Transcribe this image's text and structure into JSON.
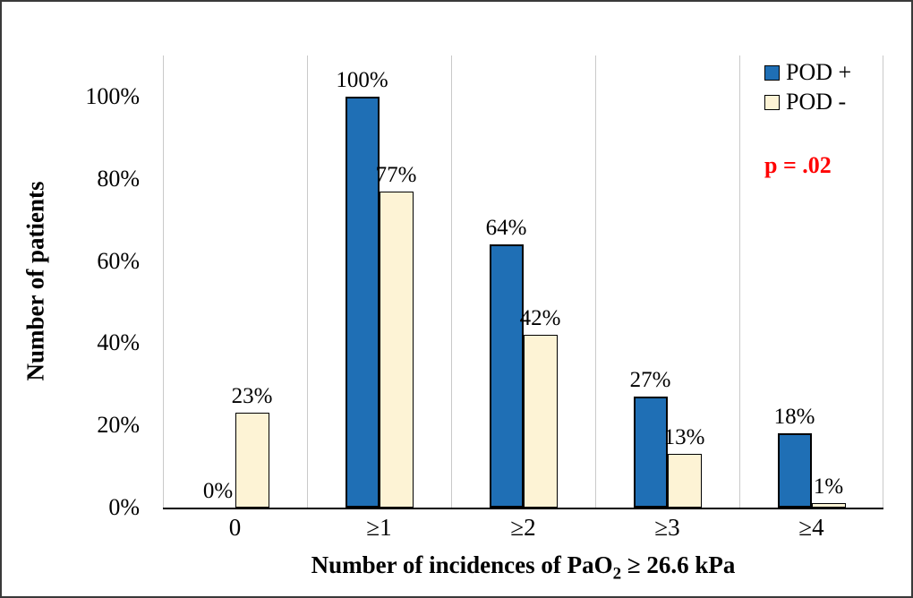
{
  "chart_data": {
    "type": "bar",
    "title": "",
    "categories": [
      "0",
      "≥1",
      "≥2",
      "≥3",
      "≥4"
    ],
    "series": [
      {
        "name": "POD +",
        "color": "#1f6fb5",
        "values": [
          0,
          100,
          64,
          27,
          18
        ]
      },
      {
        "name": "POD -",
        "color": "#fdf3d5",
        "values": [
          23,
          77,
          42,
          13,
          1
        ]
      }
    ],
    "value_label_suffix": "%",
    "ylabel": "Number of patients",
    "xlabel_parts": {
      "prefix": "Number of incidences of PaO",
      "subscript": "2",
      "suffix": " ≥ 26.6 kPa"
    },
    "y_ticks": [
      "0%",
      "20%",
      "40%",
      "60%",
      "80%",
      "100%"
    ],
    "ylim": [
      0,
      110
    ],
    "grid": "vertical-category-separators",
    "legend_position": "top-right-inside",
    "annotation": {
      "text": "p = .02",
      "color": "#ff0000"
    }
  }
}
